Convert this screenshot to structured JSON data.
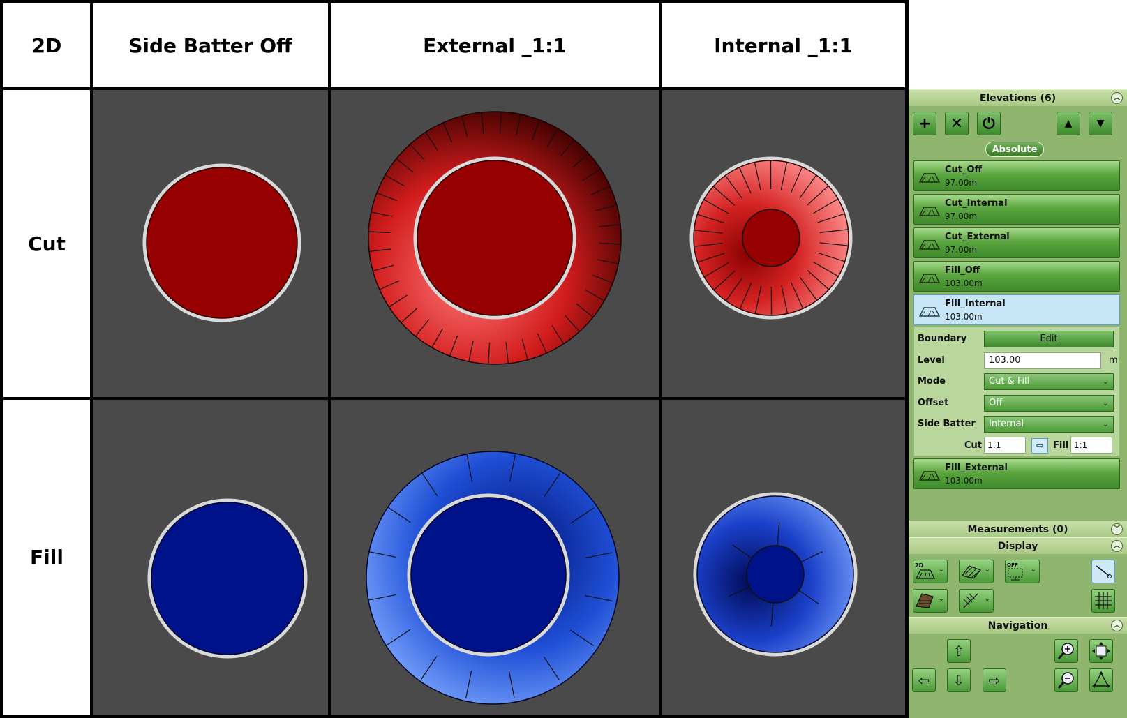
{
  "grid": {
    "corner": "2D",
    "columns": [
      "Side Batter Off",
      "External _1:1",
      "Internal _1:1"
    ],
    "rows": [
      "Cut",
      "Fill"
    ]
  },
  "colors": {
    "cut_fill": "#8b0000",
    "fill_fill": "#00128a",
    "viewport_bg": "#4a4a4a",
    "panel_bg": "#8fb56e",
    "selected_item": "#c6e6f8"
  },
  "panel": {
    "elevations": {
      "title": "Elevations (6)",
      "toolbar": [
        "add-icon",
        "delete-icon",
        "power-icon",
        "move-up-icon",
        "move-down-icon"
      ],
      "mode_pill": "Absolute",
      "items": [
        {
          "name": "Cut_Off",
          "level": "97.00m"
        },
        {
          "name": "Cut_Internal",
          "level": "97.00m"
        },
        {
          "name": "Cut_External",
          "level": "97.00m"
        },
        {
          "name": "Fill_Off",
          "level": "103.00m"
        },
        {
          "name": "Fill_Internal",
          "level": "103.00m",
          "selected": true
        },
        {
          "name": "Fill_External",
          "level": "103.00m"
        }
      ],
      "properties": {
        "boundary_label": "Boundary",
        "boundary_button": "Edit",
        "level_label": "Level",
        "level_value": "103.00",
        "level_unit": "m",
        "mode_label": "Mode",
        "mode_value": "Cut & Fill",
        "offset_label": "Offset",
        "offset_value": "Off",
        "side_batter_label": "Side Batter",
        "side_batter_value": "Internal",
        "cut_label": "Cut",
        "cut_value": "1:1",
        "fill_label": "Fill",
        "fill_value": "1:1"
      }
    },
    "measurements": {
      "title": "Measurements (0)"
    },
    "display": {
      "title": "Display"
    },
    "navigation": {
      "title": "Navigation"
    }
  }
}
